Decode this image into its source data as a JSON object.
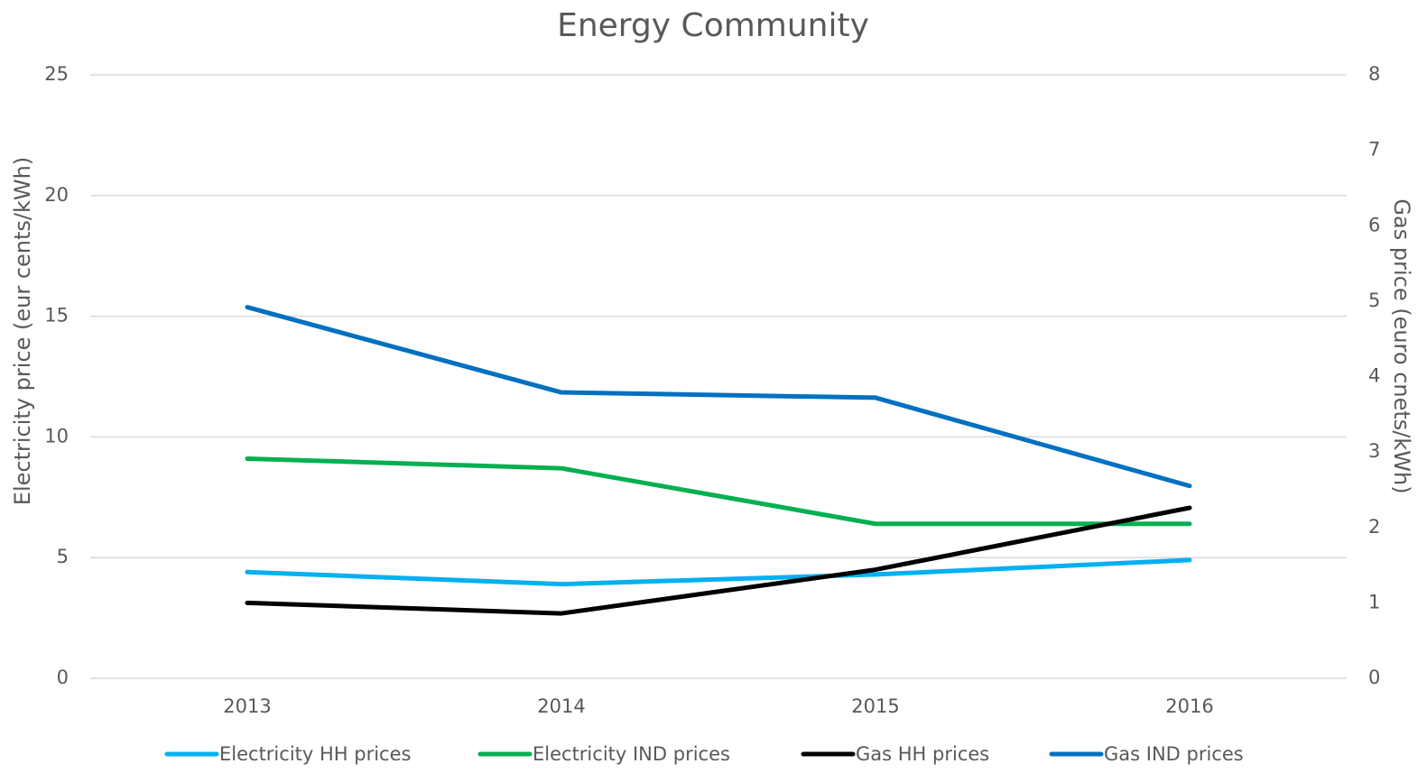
{
  "chart_data": {
    "type": "line",
    "title": "Energy Community",
    "ylabel": "Electricity price (eur cents/kWh)",
    "y2label": "Gas price (euro cnets/kWh)",
    "categories": [
      "2013",
      "2014",
      "2015",
      "2016"
    ],
    "series": [
      {
        "name": "Electricity HH prices",
        "color": "#00b0f0",
        "values": [
          4.4,
          3.9,
          4.3,
          4.9
        ]
      },
      {
        "name": "Electricity IND prices",
        "color": "#00b050",
        "values": [
          9.1,
          8.7,
          6.4,
          6.4
        ]
      },
      {
        "name": "Gas HH prices",
        "color": "#000000",
        "axis": "y2",
        "values": [
          1.0,
          0.86,
          1.44,
          2.26
        ]
      },
      {
        "name": "Gas IND prices",
        "color": "#0070c0",
        "axis": "y2",
        "values": [
          4.92,
          3.79,
          3.72,
          2.55
        ]
      }
    ],
    "ylim": [
      0,
      25
    ],
    "yticks": [
      0,
      5,
      10,
      15,
      20,
      25
    ],
    "y2lim": [
      0,
      8
    ],
    "y2ticks": [
      0,
      1,
      2,
      3,
      4,
      5,
      6,
      7,
      8
    ],
    "grid": true,
    "legend": "bottom"
  }
}
